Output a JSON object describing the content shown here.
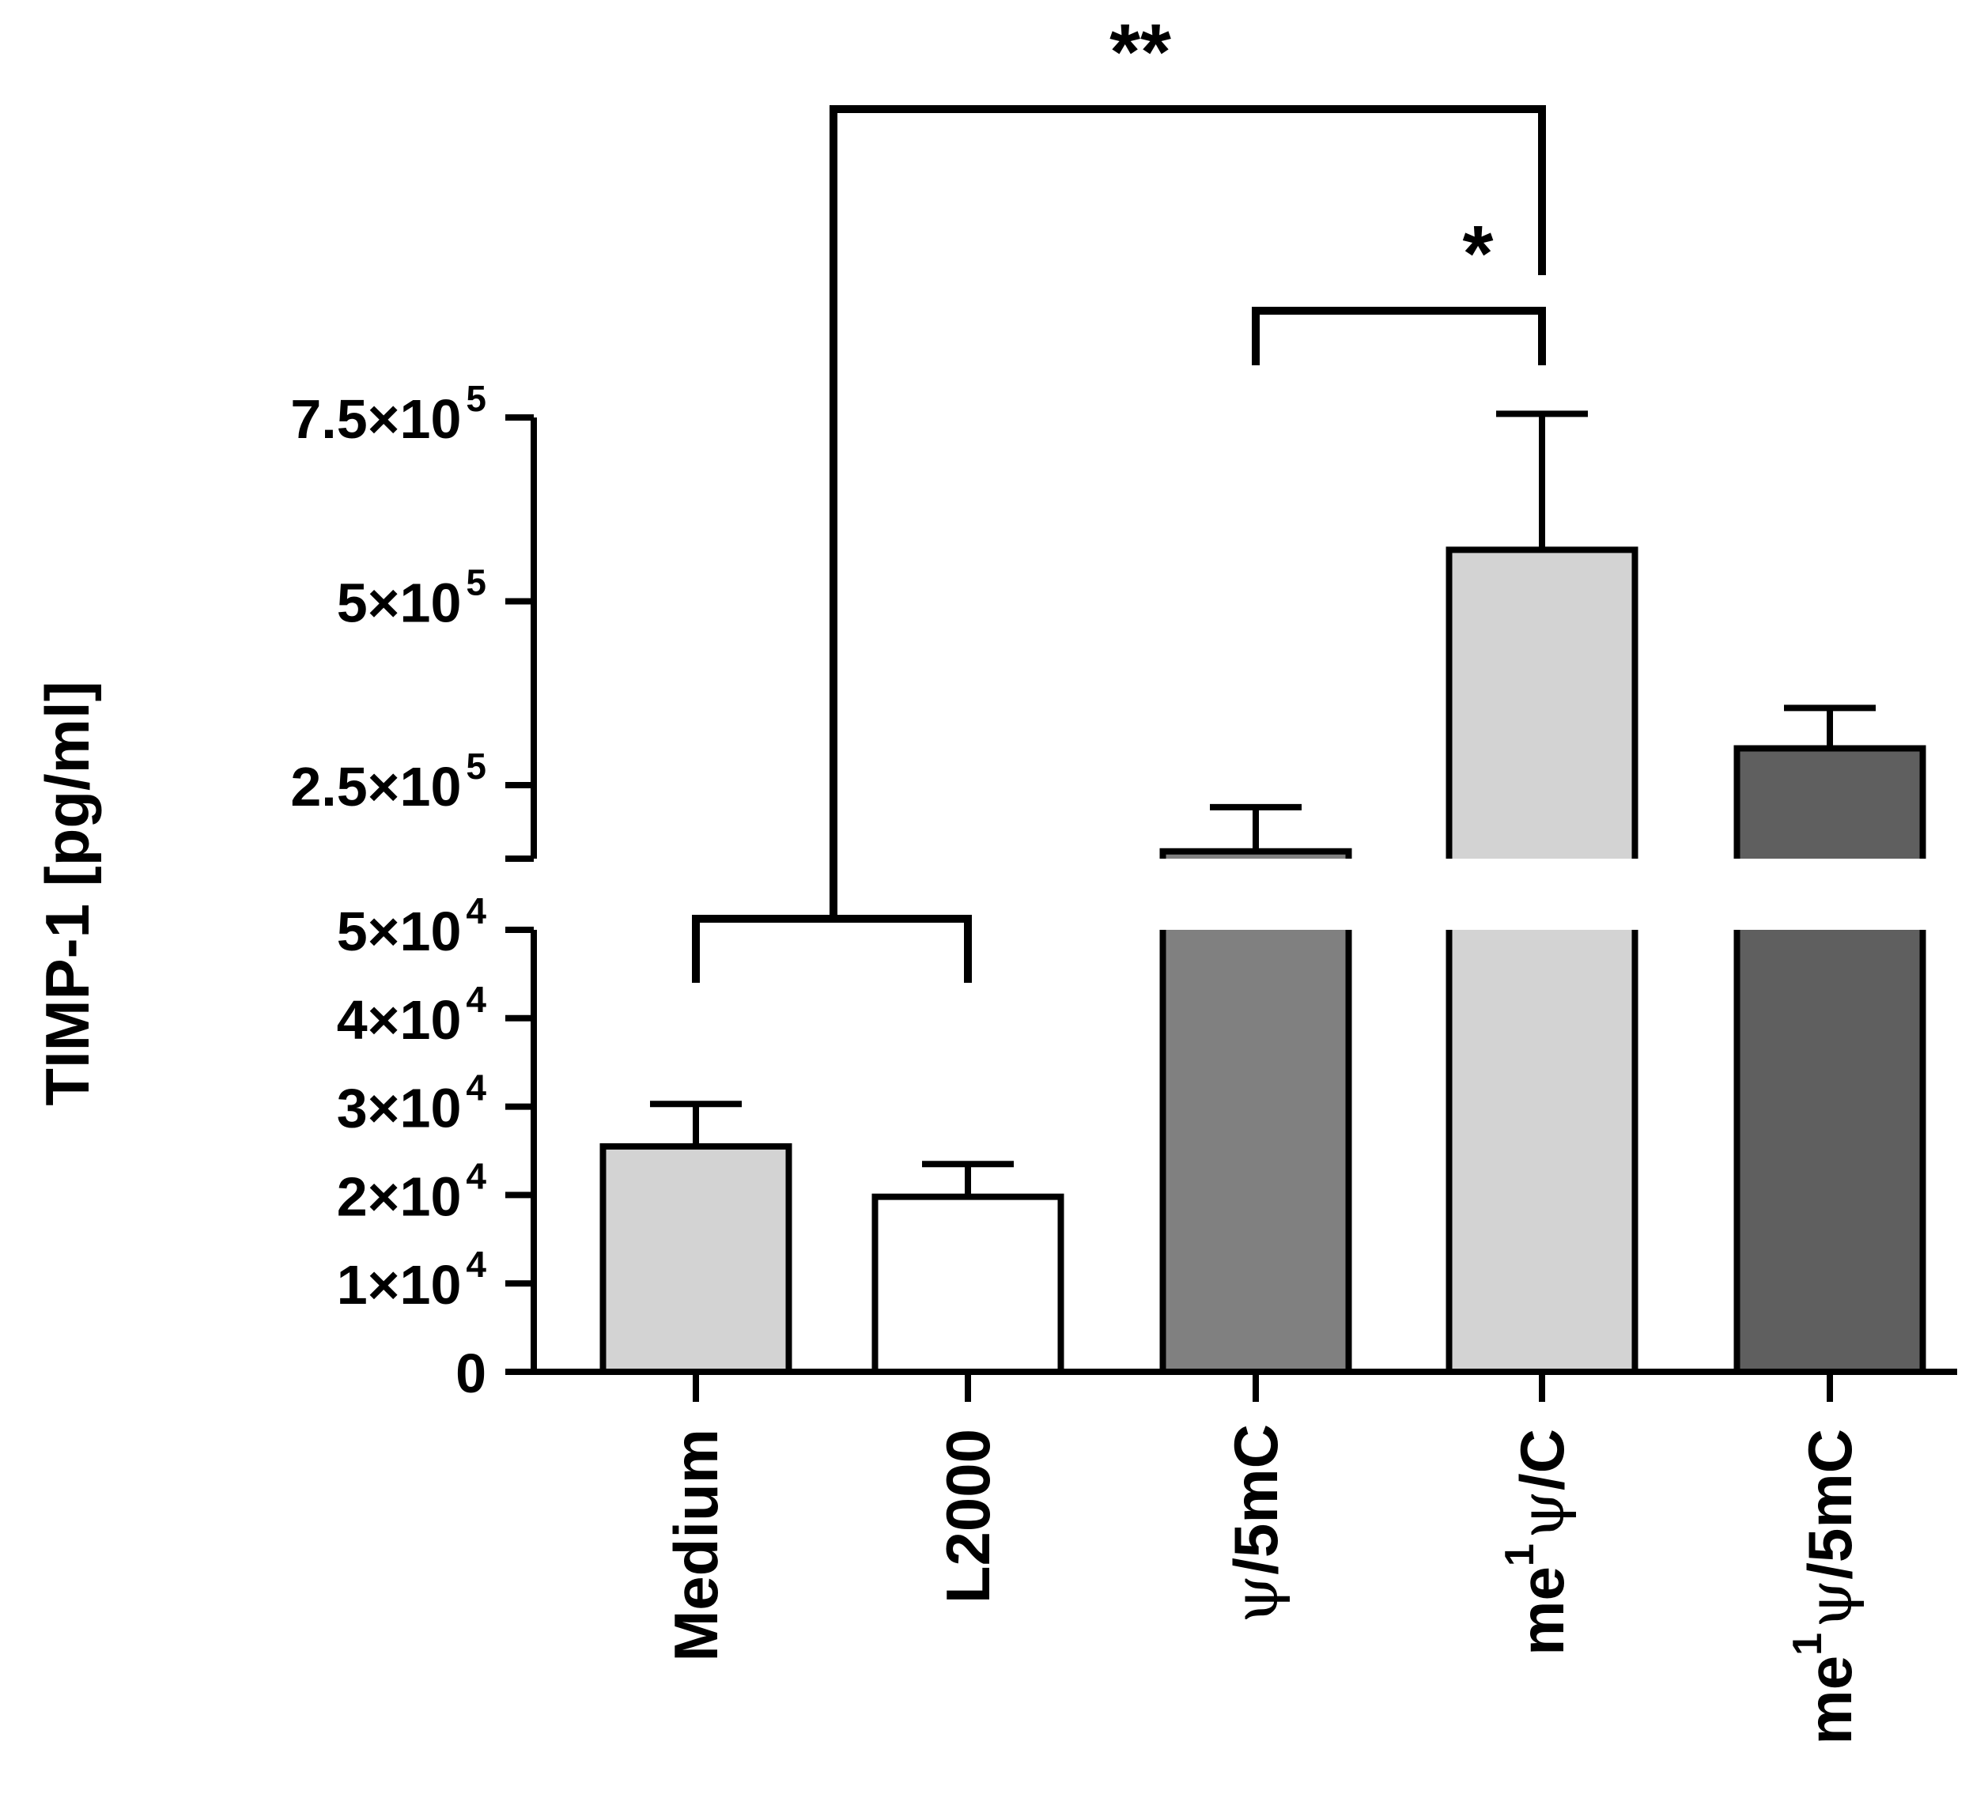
{
  "chart_data": {
    "type": "bar",
    "ylabel": "TIMP-1 [pg/ml]",
    "y_axis_broken": true,
    "y_lower_segment": {
      "ylim": [
        0,
        50000
      ],
      "ticks": [
        0,
        10000,
        20000,
        30000,
        40000,
        50000
      ]
    },
    "y_upper_segment": {
      "ylim": [
        150000,
        750000
      ],
      "ticks": [
        250000,
        500000,
        750000
      ]
    },
    "categories": [
      {
        "id": "medium",
        "base": "Medium",
        "sup": "",
        "mid": "",
        "end": ""
      },
      {
        "id": "l2000",
        "base": "L2000",
        "sup": "",
        "mid": "",
        "end": ""
      },
      {
        "id": "psi_5mc",
        "base": "",
        "sup": "",
        "mid": "ψ",
        "end": "/5mC"
      },
      {
        "id": "me1psi_c",
        "base": "me",
        "sup": "1",
        "mid": "ψ",
        "end": "/C"
      },
      {
        "id": "me1psi_5mc",
        "base": "me",
        "sup": "1",
        "mid": "ψ",
        "end": "/5mC"
      }
    ],
    "values": [
      25500,
      19800,
      160000,
      570000,
      300000
    ],
    "errors": [
      4800,
      3700,
      60000,
      185000,
      55000
    ],
    "bar_colors": [
      "#d3d3d3",
      "#ffffff",
      "#808080",
      "#d3d3d3",
      "#5f5f5f"
    ],
    "significance": [
      {
        "label": "**",
        "from": [
          "medium",
          "l2000"
        ],
        "to": "me1psi_c"
      },
      {
        "label": "*",
        "from": [
          "psi_5mc"
        ],
        "to": "me1psi_c"
      }
    ]
  },
  "ticks_lower": [
    {
      "base": "0",
      "exp": ""
    },
    {
      "base": "1×10",
      "exp": "4"
    },
    {
      "base": "2×10",
      "exp": "4"
    },
    {
      "base": "3×10",
      "exp": "4"
    },
    {
      "base": "4×10",
      "exp": "4"
    },
    {
      "base": "5×10",
      "exp": "4"
    }
  ],
  "ticks_upper": [
    {
      "base": "2.5×10",
      "exp": "5"
    },
    {
      "base": "5×10",
      "exp": "5"
    },
    {
      "base": "7.5×10",
      "exp": "5"
    }
  ]
}
